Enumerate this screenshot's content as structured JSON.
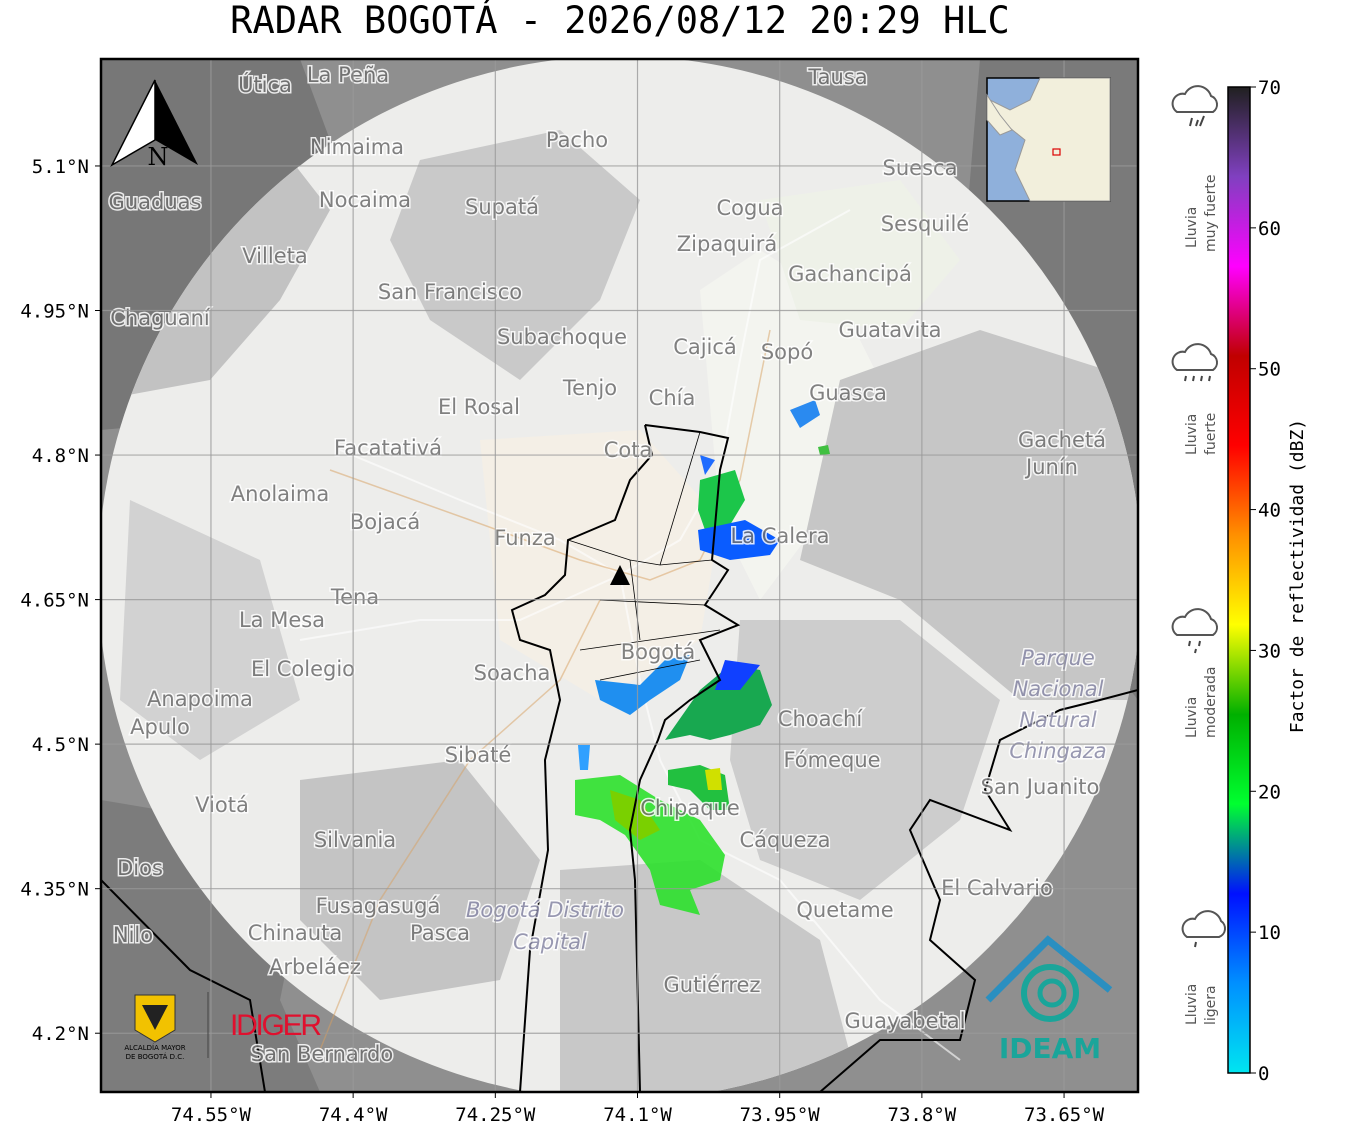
{
  "map": {
    "title": "RADAR BOGOTÁ - 2026/08/12 20:29 HLC",
    "xlim": [
      -74.666,
      -73.572
    ],
    "ylim": [
      4.139,
      5.211
    ],
    "xticks": [
      {
        "value": -74.55,
        "label": "74.55°W"
      },
      {
        "value": -74.4,
        "label": "74.4°W"
      },
      {
        "value": -74.25,
        "label": "74.25°W"
      },
      {
        "value": -74.1,
        "label": "74.1°W"
      },
      {
        "value": -73.95,
        "label": "73.95°W"
      },
      {
        "value": -73.8,
        "label": "73.8°W"
      },
      {
        "value": -73.65,
        "label": "73.65°W"
      }
    ],
    "yticks": [
      {
        "value": 5.1,
        "label": "5.1°N"
      },
      {
        "value": 4.95,
        "label": "4.95°N"
      },
      {
        "value": 4.8,
        "label": "4.8°N"
      },
      {
        "value": 4.65,
        "label": "4.65°N"
      },
      {
        "value": 4.5,
        "label": "4.5°N"
      },
      {
        "value": 4.35,
        "label": "4.35°N"
      },
      {
        "value": 4.2,
        "label": "4.2°N"
      }
    ],
    "grid": true,
    "north": "N",
    "places": [
      "La Peña",
      "Útica",
      "Tausa",
      "Pacho",
      "Nimaima",
      "Suesca",
      "Guaduas",
      "Nocaima",
      "Supatá",
      "Cogua",
      "Sesquilé",
      "Zipaquirá",
      "Villeta",
      "Gachancipá",
      "San Francisco",
      "Chaguaní",
      "Guatavita",
      "Subachoque",
      "Cajicá",
      "Sopó",
      "Tenjo",
      "Guasca",
      "Chía",
      "El Rosal",
      "Facatativá",
      "Cota",
      "Gachetá",
      "Junín",
      "Anolaima",
      "Bojacá",
      "Funza",
      "La Calera",
      "Tena",
      "La Mesa",
      "Bogotá",
      "El Colegio",
      "Soacha",
      "Anapoima",
      "Choachí",
      "Apulo",
      "Sibaté",
      "Fómeque",
      "San Juanito",
      "Viotá",
      "Chipaque",
      "Silvania",
      "Cáqueza",
      "El Calvario",
      "Fusagasugá",
      "Quetame",
      "Nilo",
      "Chinauta",
      "Pasca",
      "Arbeláez",
      "Gutiérrez",
      "Guayabetal",
      "San Bernardo",
      "Dios"
    ],
    "park": [
      "Parque",
      "Nacional",
      "Natural",
      "Chingaza"
    ],
    "district": [
      "Bogotá Distrito",
      "Capital"
    ],
    "logos": {
      "alcaldia": [
        "ALCALDÍA MAYOR",
        "DE BOGOTÁ D.C."
      ],
      "idiger": "IDIGER",
      "ideam": "IDEAM"
    }
  },
  "colorbar": {
    "label": "Factor de reflectividad (dBZ)",
    "lim": [
      0,
      70
    ],
    "ticks": [
      0,
      10,
      20,
      30,
      40,
      50,
      60,
      70
    ],
    "colors": [
      "#00e5f0",
      "#0090ff",
      "#0010ff",
      "#00ff30",
      "#00b000",
      "#ffff00",
      "#ff9000",
      "#ff0000",
      "#c00000",
      "#ff00ff",
      "#8040c0",
      "#202020"
    ]
  },
  "rain_levels": [
    {
      "lines": [
        "Lluvia",
        "muy fuerte"
      ]
    },
    {
      "lines": [
        "Lluvia",
        "fuerte"
      ]
    },
    {
      "lines": [
        "Lluvia",
        "moderada"
      ]
    },
    {
      "lines": [
        "Lluvia",
        "ligera"
      ]
    }
  ]
}
